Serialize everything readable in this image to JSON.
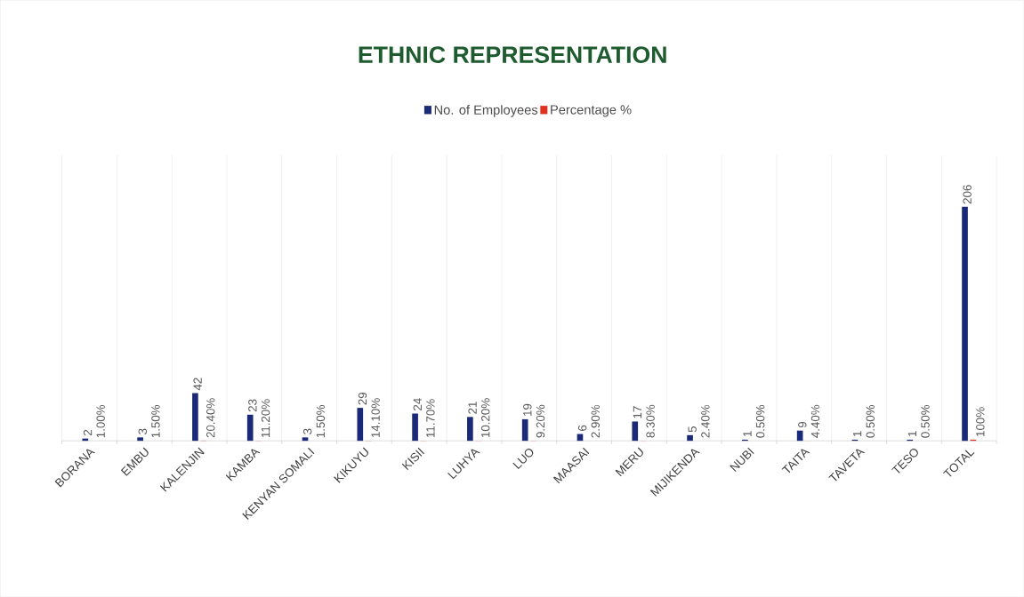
{
  "chart_data": {
    "type": "bar",
    "title": "ETHNIC REPRESENTATION",
    "categories": [
      "BORANA",
      "EMBU",
      "KALENJIN",
      "KAMBA",
      "KENYAN SOMALI",
      "KIKUYU",
      "KISII",
      "LUHYA",
      "LUO",
      "MAASAI",
      "MERU",
      "MIJIKENDA",
      "NUBI",
      "TAITA",
      "TAVETA",
      "TESO",
      "TOTAL"
    ],
    "series": [
      {
        "name": "No. of Employees",
        "color": "#1b2a78",
        "values": [
          2,
          3,
          42,
          23,
          3,
          29,
          24,
          21,
          19,
          6,
          17,
          5,
          1,
          9,
          1,
          1,
          206
        ],
        "value_labels": [
          "2",
          "3",
          "42",
          "23",
          "3",
          "29",
          "24",
          "21",
          "19",
          "6",
          "17",
          "5",
          "1",
          "9",
          "1",
          "1",
          "206"
        ]
      },
      {
        "name": "Percentage %",
        "color": "#e0301e",
        "values": [
          0.01,
          0.015,
          0.204,
          0.112,
          0.015,
          0.141,
          0.117,
          0.102,
          0.092,
          0.029,
          0.083,
          0.024,
          0.005,
          0.044,
          0.005,
          0.005,
          1
        ],
        "value_labels": [
          "1.00%",
          "1.50%",
          "20.40%",
          "11.20%",
          "1.50%",
          "14.10%",
          "11.70%",
          "10.20%",
          "9.20%",
          "2.90%",
          "8.30%",
          "2.40%",
          "0.50%",
          "4.40%",
          "0.50%",
          "0.50%",
          "100%"
        ]
      }
    ],
    "grid": "x",
    "legend": "top"
  }
}
